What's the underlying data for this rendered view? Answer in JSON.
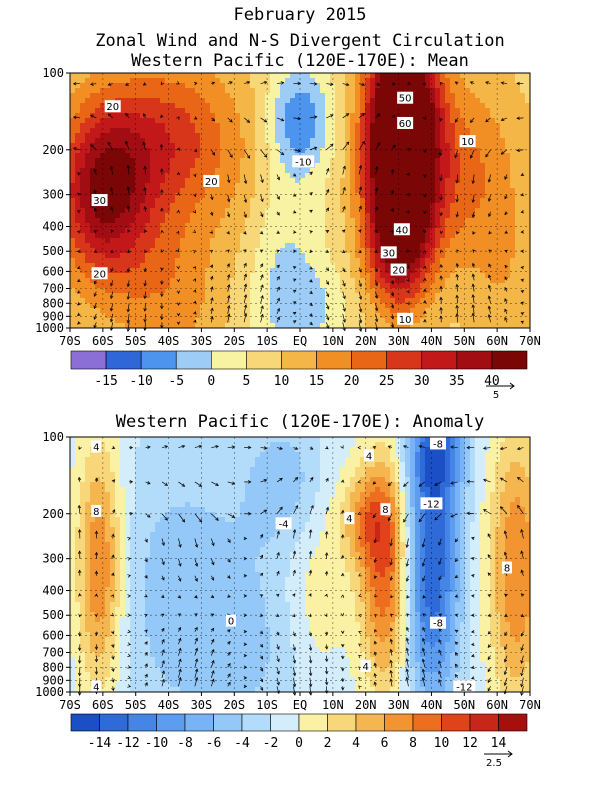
{
  "titles": {
    "line1": "February 2015",
    "line2": "Zonal Wind and N-S Divergent Circulation",
    "line3": "Western Pacific (120E-170E): Mean",
    "panel2_title": "Western Pacific (120E-170E): Anomaly"
  },
  "chart_data": [
    {
      "type": "heatmap",
      "title": "Western Pacific (120E-170E): Mean",
      "x_ticks": [
        "70S",
        "60S",
        "50S",
        "40S",
        "30S",
        "20S",
        "10S",
        "EQ",
        "10N",
        "20N",
        "30N",
        "40N",
        "50N",
        "60N",
        "70N"
      ],
      "x_values": [
        -70,
        -60,
        -50,
        -40,
        -30,
        -20,
        -10,
        0,
        10,
        20,
        30,
        40,
        50,
        60,
        70
      ],
      "y_ticks": [
        "100",
        "200",
        "300",
        "400",
        "500",
        "600",
        "700",
        "800",
        "900",
        "1000"
      ],
      "y_values": [
        100,
        200,
        300,
        400,
        500,
        600,
        700,
        800,
        900,
        1000
      ],
      "y_scale": "log",
      "grid": "dashed",
      "colorbar_labels": [
        "-15",
        "-10",
        "-5",
        "0",
        "5",
        "10",
        "15",
        "20",
        "25",
        "30",
        "35",
        "40"
      ],
      "colorbar_levels": [
        -20,
        -15,
        -10,
        -5,
        0,
        5,
        10,
        15,
        20,
        25,
        30,
        35,
        40,
        45
      ],
      "colorbar_colors": [
        "#8b6fd6",
        "#2f66d8",
        "#4d94ee",
        "#9dccf6",
        "#f7f3a3",
        "#f7d778",
        "#f5b648",
        "#f28f24",
        "#e86616",
        "#d8361a",
        "#c3181a",
        "#a10d12",
        "#7a0606"
      ],
      "vector_reference": "5",
      "contour_labels": [
        {
          "text": "20",
          "lat": -57,
          "p": 135
        },
        {
          "text": "20",
          "lat": -27,
          "p": 265
        },
        {
          "text": "30",
          "lat": -61,
          "p": 315
        },
        {
          "text": "20",
          "lat": -61,
          "p": 610
        },
        {
          "text": "-10",
          "lat": 1,
          "p": 222
        },
        {
          "text": "50",
          "lat": 32,
          "p": 125
        },
        {
          "text": "60",
          "lat": 32,
          "p": 157
        },
        {
          "text": "10",
          "lat": 51,
          "p": 185
        },
        {
          "text": "40",
          "lat": 31,
          "p": 410
        },
        {
          "text": "30",
          "lat": 27,
          "p": 505
        },
        {
          "text": "20",
          "lat": 30,
          "p": 590
        },
        {
          "text": "10",
          "lat": 32,
          "p": 920
        }
      ],
      "features": [
        {
          "lat": -60,
          "p": 300,
          "value": 31,
          "w_lat": 10,
          "w_lp": 0.55
        },
        {
          "lat": -40,
          "p": 180,
          "value": 19,
          "w_lat": 15,
          "w_lp": 0.5
        },
        {
          "lat": -40,
          "p": 700,
          "value": 10,
          "w_lat": 12,
          "w_lp": 0.6
        },
        {
          "lat": -15,
          "p": 300,
          "value": 4,
          "w_lat": 8,
          "w_lp": 0.6
        },
        {
          "lat": 0,
          "p": 150,
          "value": -16,
          "w_lat": 7,
          "w_lp": 0.35
        },
        {
          "lat": -6,
          "p": 500,
          "value": -9,
          "w_lat": 9,
          "w_lp": 0.7
        },
        {
          "lat": 3,
          "p": 850,
          "value": -7,
          "w_lat": 9,
          "w_lp": 0.3
        },
        {
          "lat": 31,
          "p": 170,
          "value": 62,
          "w_lat": 7.5,
          "w_lp": 0.6
        },
        {
          "lat": 30,
          "p": 450,
          "value": 30,
          "w_lat": 7,
          "w_lp": 0.45
        },
        {
          "lat": 50,
          "p": 250,
          "value": 13,
          "w_lat": 12,
          "w_lp": 0.6
        },
        {
          "lat": 63,
          "p": 700,
          "value": 5,
          "w_lat": 8,
          "w_lp": 0.5
        }
      ],
      "base_value": 8
    },
    {
      "type": "heatmap",
      "title": "Western Pacific (120E-170E): Anomaly",
      "x_ticks": [
        "70S",
        "60S",
        "50S",
        "40S",
        "30S",
        "20S",
        "10S",
        "EQ",
        "10N",
        "20N",
        "30N",
        "40N",
        "50N",
        "60N",
        "70N"
      ],
      "x_values": [
        -70,
        -60,
        -50,
        -40,
        -30,
        -20,
        -10,
        0,
        10,
        20,
        30,
        40,
        50,
        60,
        70
      ],
      "y_ticks": [
        "100",
        "200",
        "300",
        "400",
        "500",
        "600",
        "700",
        "800",
        "900",
        "1000"
      ],
      "y_values": [
        100,
        200,
        300,
        400,
        500,
        600,
        700,
        800,
        900,
        1000
      ],
      "y_scale": "log",
      "grid": "dashed",
      "colorbar_labels": [
        "-14",
        "-12",
        "-10",
        "-8",
        "-6",
        "-4",
        "-2",
        "0",
        "2",
        "4",
        "6",
        "8",
        "10",
        "12",
        "14"
      ],
      "colorbar_levels": [
        -16,
        -14,
        -12,
        -10,
        -8,
        -6,
        -4,
        -2,
        0,
        2,
        4,
        6,
        8,
        10,
        12,
        14,
        16
      ],
      "colorbar_colors": [
        "#1a4fc6",
        "#2e6ad8",
        "#4585e6",
        "#5d9df0",
        "#77b3f6",
        "#94c8f8",
        "#b3dcfa",
        "#d4edfb",
        "#fbf1a4",
        "#f8d67a",
        "#f5b650",
        "#f29432",
        "#ec6e1e",
        "#e0431a",
        "#c82618",
        "#a5100f"
      ],
      "vector_reference": "2.5",
      "contour_labels": [
        {
          "text": "4",
          "lat": -62,
          "p": 109
        },
        {
          "text": "8",
          "lat": -62,
          "p": 195
        },
        {
          "text": "4",
          "lat": -62,
          "p": 950
        },
        {
          "text": "-4",
          "lat": -5,
          "p": 218
        },
        {
          "text": "0",
          "lat": -21,
          "p": 525
        },
        {
          "text": "4",
          "lat": 21,
          "p": 118
        },
        {
          "text": "4",
          "lat": 15,
          "p": 208
        },
        {
          "text": "8",
          "lat": 26,
          "p": 192
        },
        {
          "text": "-8",
          "lat": 42,
          "p": 106
        },
        {
          "text": "-12",
          "lat": 40,
          "p": 182
        },
        {
          "text": "-8",
          "lat": 42,
          "p": 535
        },
        {
          "text": "4",
          "lat": 20,
          "p": 790
        },
        {
          "text": "-12",
          "lat": 50,
          "p": 950
        },
        {
          "text": "8",
          "lat": 63,
          "p": 325
        }
      ],
      "features": [
        {
          "lat": -61,
          "p": 330,
          "value": 10,
          "w_lat": 5,
          "w_lp": 0.8
        },
        {
          "lat": -35,
          "p": 400,
          "value": -4,
          "w_lat": 18,
          "w_lp": 1.0
        },
        {
          "lat": -10,
          "p": 700,
          "value": -2,
          "w_lat": 15,
          "w_lp": 0.6
        },
        {
          "lat": 5,
          "p": 450,
          "value": 3,
          "w_lat": 7,
          "w_lp": 0.6
        },
        {
          "lat": 26,
          "p": 340,
          "value": 11,
          "w_lat": 5.5,
          "w_lp": 0.75
        },
        {
          "lat": 20,
          "p": 210,
          "value": 6,
          "w_lat": 6,
          "w_lp": 0.3
        },
        {
          "lat": 40,
          "p": 320,
          "value": -13,
          "w_lat": 6,
          "w_lp": 0.9
        },
        {
          "lat": 42,
          "p": 110,
          "value": -8,
          "w_lat": 6,
          "w_lp": 0.35
        },
        {
          "lat": 66,
          "p": 330,
          "value": 9,
          "w_lat": 6,
          "w_lp": 0.9
        },
        {
          "lat": -5,
          "p": 150,
          "value": -4,
          "w_lat": 8,
          "w_lp": 0.4
        }
      ],
      "base_value": -1
    }
  ]
}
